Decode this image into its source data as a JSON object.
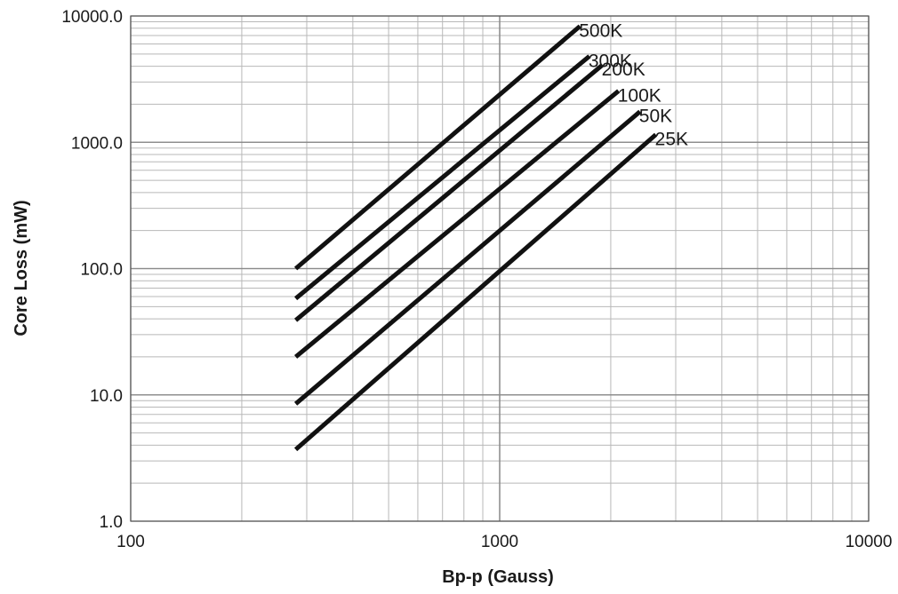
{
  "chart_data": {
    "type": "line",
    "title": "",
    "xlabel": "Bp-p (Gauss)",
    "ylabel": "Core Loss (mW)",
    "x_scale": "log",
    "y_scale": "log",
    "xlim": [
      100,
      10000
    ],
    "ylim": [
      1,
      10000
    ],
    "grid": true,
    "x_tick_labels": [
      "100",
      "1000",
      "10000"
    ],
    "y_tick_labels": [
      "1.0",
      "10.0",
      "100.0",
      "1000.0",
      "10000.0"
    ],
    "line_color": "#111111",
    "series": [
      {
        "name": "500K",
        "x": [
          280,
          1650
        ],
        "y": [
          100,
          8300
        ]
      },
      {
        "name": "300K",
        "x": [
          280,
          1750
        ],
        "y": [
          58,
          4800
        ]
      },
      {
        "name": "200K",
        "x": [
          280,
          1900
        ],
        "y": [
          39,
          4100
        ]
      },
      {
        "name": "100K",
        "x": [
          280,
          2100
        ],
        "y": [
          20,
          2550
        ]
      },
      {
        "name": "50K",
        "x": [
          280,
          2400
        ],
        "y": [
          8.5,
          1750
        ]
      },
      {
        "name": "25K",
        "x": [
          280,
          2650
        ],
        "y": [
          3.7,
          1150
        ]
      }
    ]
  }
}
